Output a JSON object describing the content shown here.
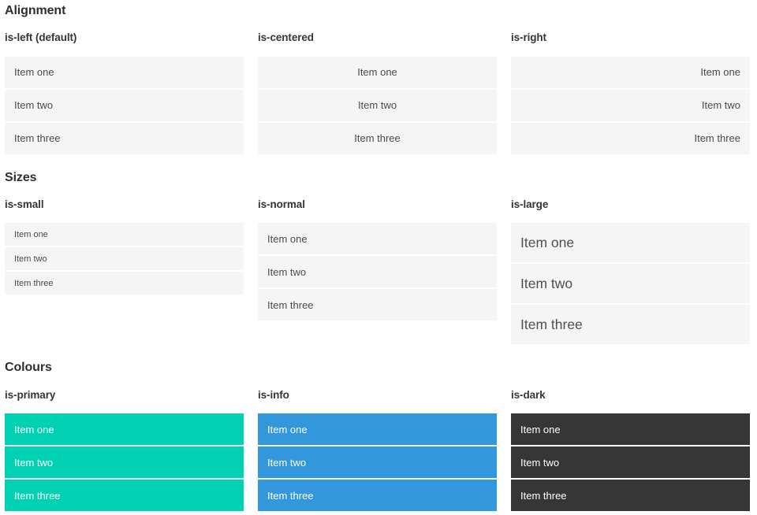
{
  "colors": {
    "primary": "#00d1b2",
    "info": "#3298db",
    "dark": "#363636",
    "item_bg": "#f5f5f5",
    "item_text": "#4a4a4a",
    "heading_text": "#2f2f2f"
  },
  "sections": [
    {
      "title": "Alignment",
      "columns": [
        {
          "label": "is-left (default)",
          "modifier": "left",
          "items": [
            "Item one",
            "Item two",
            "Item three"
          ]
        },
        {
          "label": "is-centered",
          "modifier": "centered",
          "items": [
            "Item one",
            "Item two",
            "Item three"
          ]
        },
        {
          "label": "is-right",
          "modifier": "right",
          "items": [
            "Item one",
            "Item two",
            "Item three"
          ]
        }
      ]
    },
    {
      "title": "Sizes",
      "columns": [
        {
          "label": "is-small",
          "modifier": "small",
          "items": [
            "Item one",
            "Item two",
            "Item three"
          ]
        },
        {
          "label": "is-normal",
          "modifier": "normal",
          "items": [
            "Item one",
            "Item two",
            "Item three"
          ]
        },
        {
          "label": "is-large",
          "modifier": "large",
          "items": [
            "Item one",
            "Item two",
            "Item three"
          ]
        }
      ]
    },
    {
      "title": "Colours",
      "columns": [
        {
          "label": "is-primary",
          "modifier": "primary",
          "items": [
            "Item one",
            "Item two",
            "Item three"
          ]
        },
        {
          "label": "is-info",
          "modifier": "info",
          "items": [
            "Item one",
            "Item two",
            "Item three"
          ]
        },
        {
          "label": "is-dark",
          "modifier": "dark",
          "items": [
            "Item one",
            "Item two",
            "Item three"
          ]
        }
      ]
    }
  ]
}
